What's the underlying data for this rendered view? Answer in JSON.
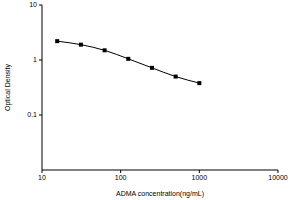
{
  "chart_data": {
    "type": "line",
    "x_label": "ADMA concentration(ng/mL)",
    "y_label": "Optical Density",
    "x": [
      15.6,
      31.25,
      62.5,
      125,
      250,
      500,
      1000
    ],
    "values": [
      2.2,
      1.9,
      1.5,
      1.05,
      0.72,
      0.5,
      0.38
    ],
    "color": "#000000",
    "marker": "square",
    "line_style": "solid",
    "log": true,
    "xlim": [
      10,
      10000
    ],
    "xticks": [
      10,
      100,
      1000,
      10000
    ],
    "ylim": [
      0.01,
      10
    ],
    "yticks": [
      0.1,
      1,
      10
    ],
    "grid": false
  }
}
